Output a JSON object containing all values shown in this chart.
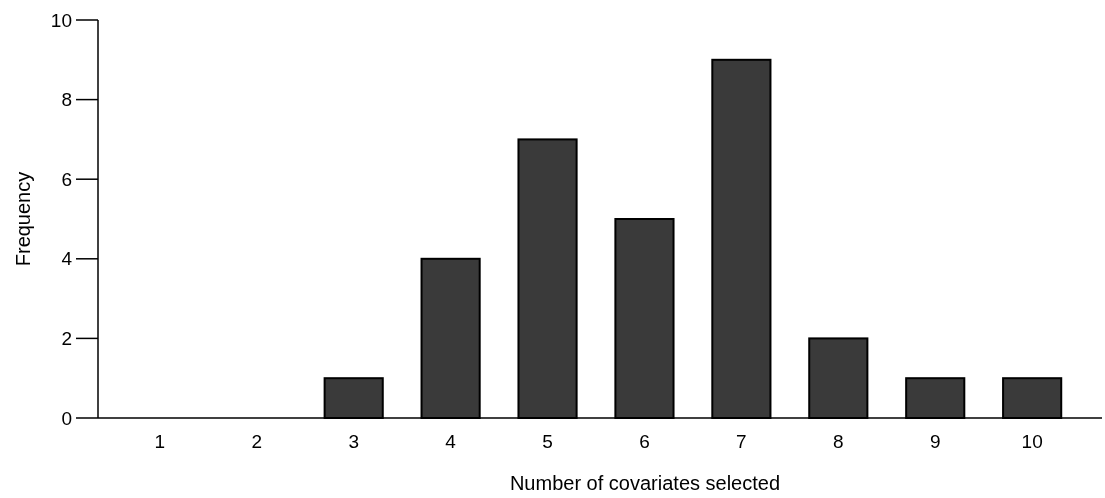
{
  "chart_data": {
    "type": "bar",
    "xlabel": "Number of covariates selected",
    "ylabel": "Frequency",
    "categories": [
      "1",
      "2",
      "3",
      "4",
      "5",
      "6",
      "7",
      "8",
      "9",
      "10"
    ],
    "values": [
      0,
      0,
      1,
      4,
      7,
      5,
      9,
      2,
      1,
      1
    ],
    "color": "#3a3a3a",
    "ylim": [
      0,
      10
    ],
    "yticks": [
      0,
      2,
      4,
      6,
      8,
      10
    ],
    "grid": false
  }
}
